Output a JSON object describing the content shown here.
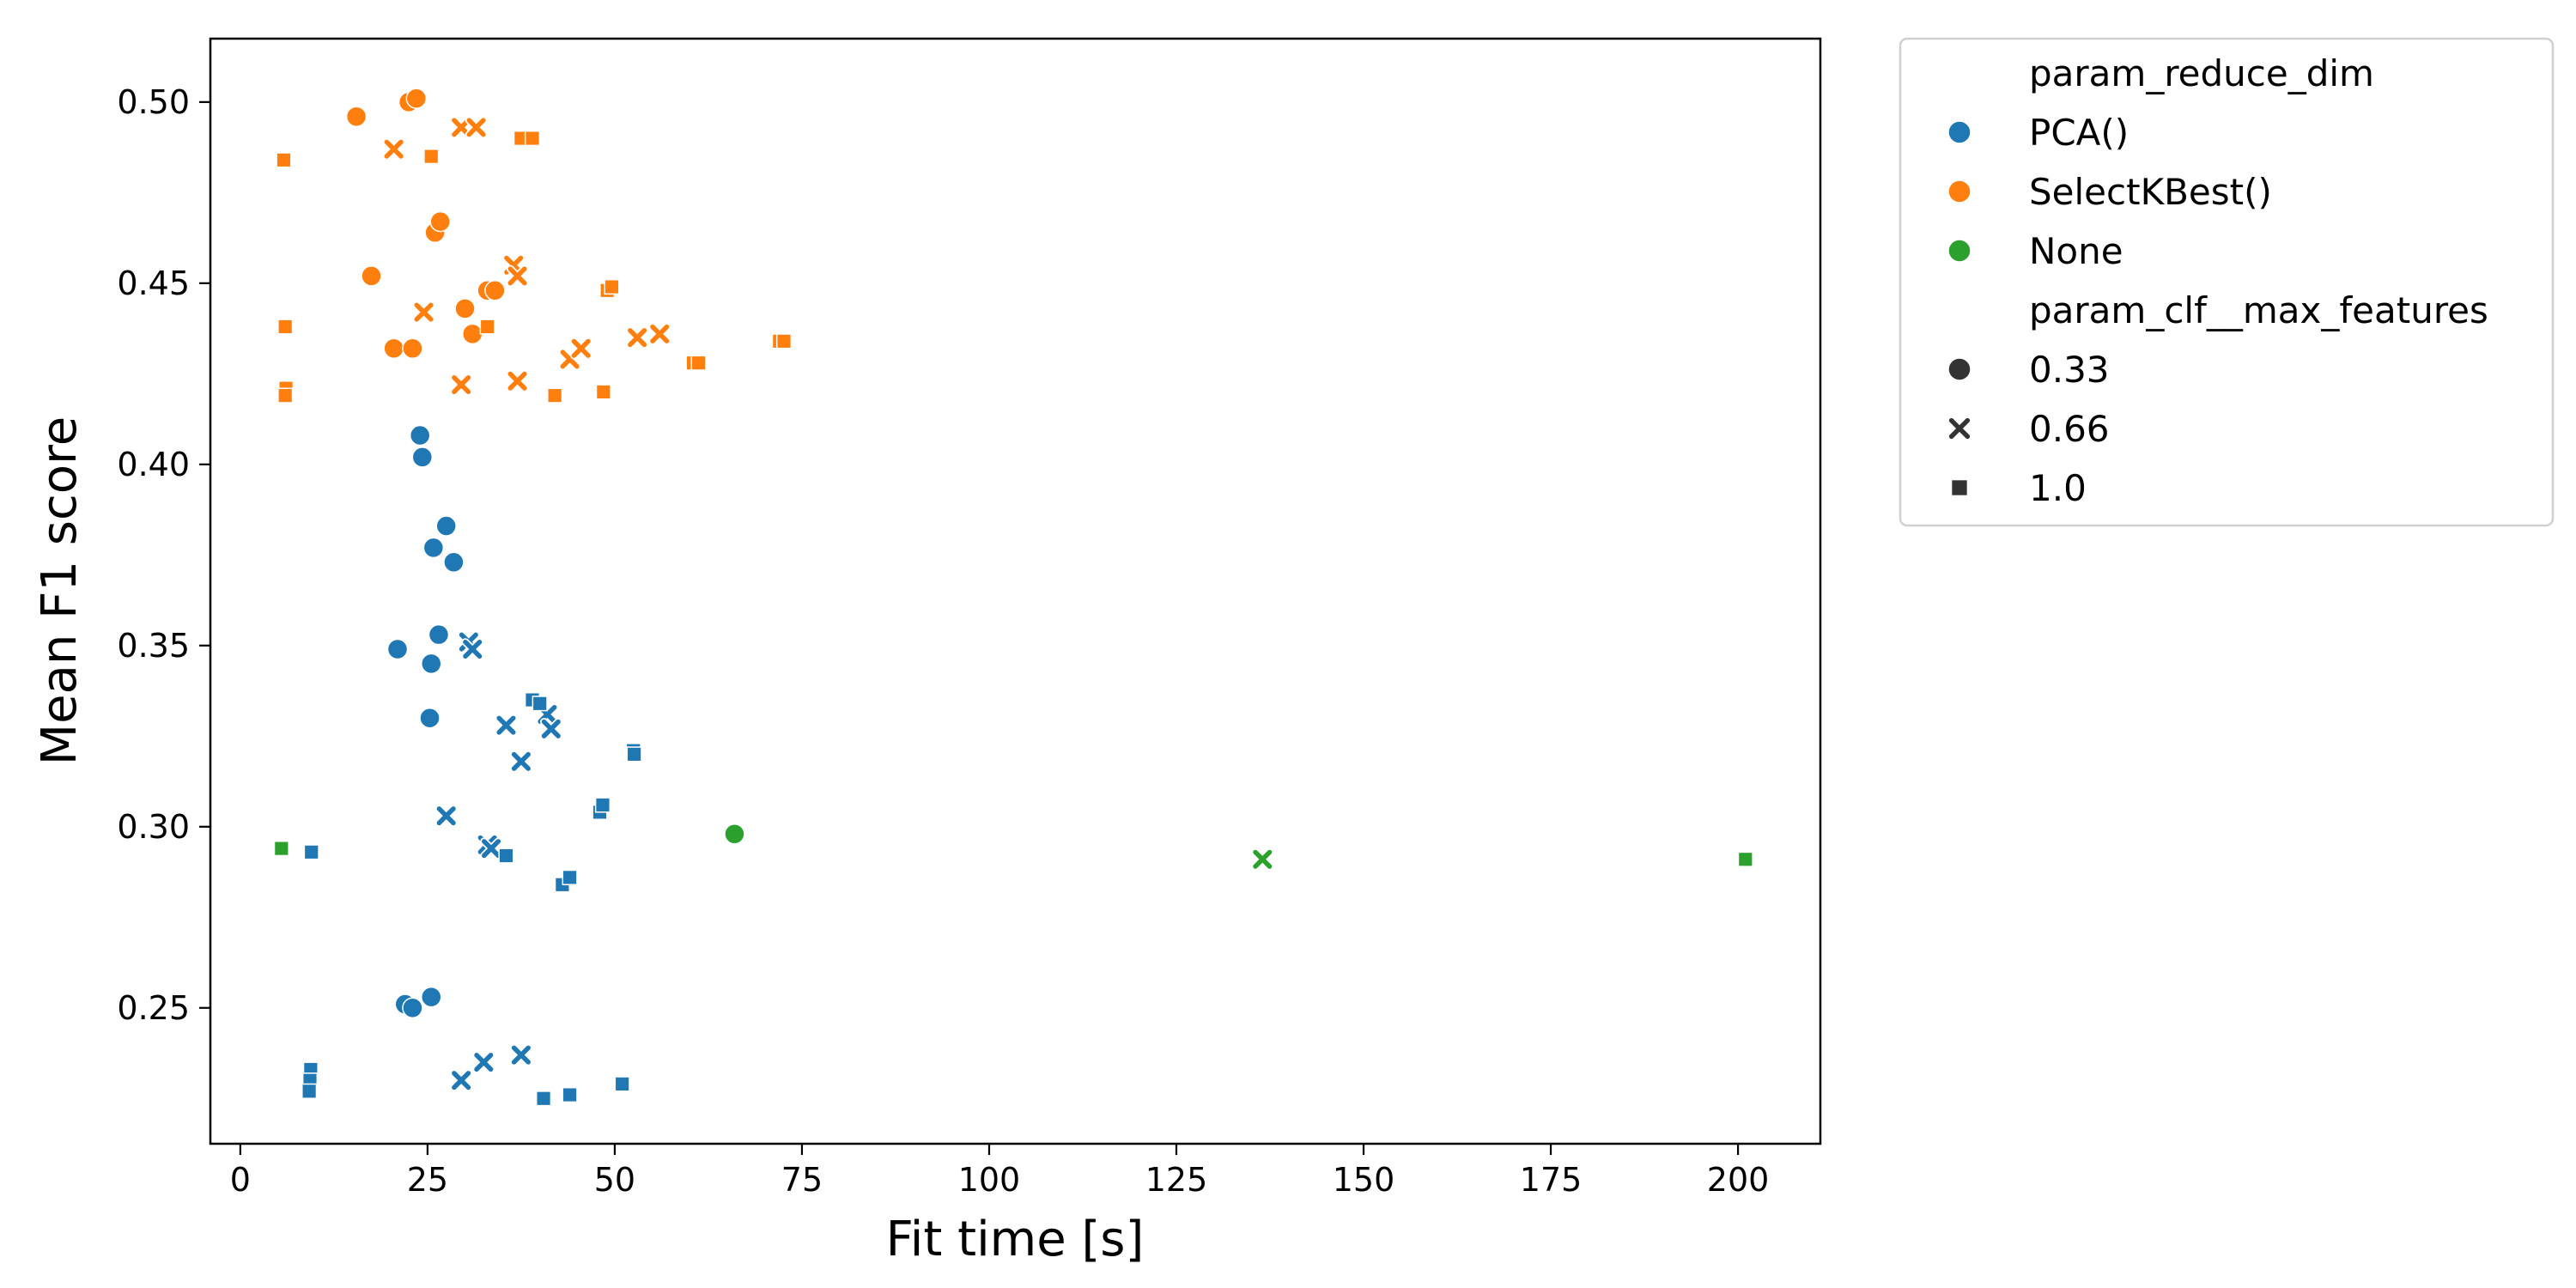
{
  "chart_data": {
    "type": "scatter",
    "xlabel": "Fit time [s]",
    "ylabel": "Mean F1 score",
    "xlim": [
      -4,
      211
    ],
    "ylim": [
      0.2125,
      0.5175
    ],
    "xticks": [
      0,
      25,
      50,
      75,
      100,
      125,
      150,
      175,
      200
    ],
    "yticks": [
      0.25,
      0.3,
      0.35,
      0.4,
      0.45,
      0.5
    ],
    "xtick_labels": [
      "0",
      "25",
      "50",
      "75",
      "100",
      "125",
      "150",
      "175",
      "200"
    ],
    "ytick_labels": [
      "0.25",
      "0.30",
      "0.35",
      "0.40",
      "0.45",
      "0.50"
    ],
    "grid": false,
    "legend": {
      "placement": "outside-upper-right",
      "hue_title": "param_reduce_dim",
      "style_title": "param_clf__max_features",
      "hue_entries": [
        {
          "label": "PCA()",
          "color": "#1f77b4"
        },
        {
          "label": "SelectKBest()",
          "color": "#ff7f0e"
        },
        {
          "label": "None",
          "color": "#2ca02c"
        }
      ],
      "style_entries": [
        {
          "label": "0.33",
          "marker": "circle"
        },
        {
          "label": "0.66",
          "marker": "x"
        },
        {
          "label": "1.0",
          "marker": "square"
        }
      ]
    },
    "series": [
      {
        "hue": 0,
        "style": 0,
        "points": [
          [
            24,
            0.408
          ],
          [
            24.3,
            0.402
          ],
          [
            27.5,
            0.383
          ],
          [
            25.8,
            0.377
          ],
          [
            28.5,
            0.373
          ],
          [
            26.5,
            0.353
          ],
          [
            21,
            0.349
          ],
          [
            25.5,
            0.345
          ],
          [
            25.3,
            0.33
          ],
          [
            22,
            0.251
          ],
          [
            23,
            0.25
          ],
          [
            25.5,
            0.253
          ]
        ]
      },
      {
        "hue": 0,
        "style": 1,
        "points": [
          [
            30.5,
            0.351
          ],
          [
            31,
            0.349
          ],
          [
            35.5,
            0.328
          ],
          [
            37.5,
            0.318
          ],
          [
            41,
            0.331
          ],
          [
            41.5,
            0.327
          ],
          [
            27.5,
            0.303
          ],
          [
            33,
            0.295
          ],
          [
            33.5,
            0.294
          ],
          [
            29.5,
            0.23
          ],
          [
            32.5,
            0.235
          ],
          [
            37.5,
            0.237
          ]
        ]
      },
      {
        "hue": 0,
        "style": 2,
        "points": [
          [
            39,
            0.335
          ],
          [
            40,
            0.334
          ],
          [
            52.5,
            0.321
          ],
          [
            52.6,
            0.32
          ],
          [
            48,
            0.304
          ],
          [
            48.4,
            0.306
          ],
          [
            35.5,
            0.292
          ],
          [
            43,
            0.284
          ],
          [
            44,
            0.286
          ],
          [
            9.5,
            0.293
          ],
          [
            9.4,
            0.233
          ],
          [
            9.3,
            0.23
          ],
          [
            9.2,
            0.227
          ],
          [
            40.5,
            0.225
          ],
          [
            44,
            0.226
          ],
          [
            51,
            0.229
          ]
        ]
      },
      {
        "hue": 1,
        "style": 0,
        "points": [
          [
            15.5,
            0.496
          ],
          [
            22.5,
            0.5
          ],
          [
            23.5,
            0.501
          ],
          [
            17.5,
            0.452
          ],
          [
            26,
            0.464
          ],
          [
            26.7,
            0.467
          ],
          [
            33,
            0.448
          ],
          [
            34,
            0.448
          ],
          [
            30,
            0.443
          ],
          [
            31,
            0.436
          ],
          [
            20.5,
            0.432
          ],
          [
            23,
            0.432
          ]
        ]
      },
      {
        "hue": 1,
        "style": 1,
        "points": [
          [
            29.5,
            0.493
          ],
          [
            31.5,
            0.493
          ],
          [
            20.5,
            0.487
          ],
          [
            36.5,
            0.455
          ],
          [
            37,
            0.452
          ],
          [
            24.5,
            0.442
          ],
          [
            44,
            0.429
          ],
          [
            45.5,
            0.432
          ],
          [
            53,
            0.435
          ],
          [
            56,
            0.436
          ],
          [
            29.5,
            0.422
          ],
          [
            37,
            0.423
          ]
        ]
      },
      {
        "hue": 1,
        "style": 2,
        "points": [
          [
            37.5,
            0.49
          ],
          [
            39,
            0.49
          ],
          [
            25.5,
            0.485
          ],
          [
            5.8,
            0.484
          ],
          [
            49,
            0.448
          ],
          [
            49.6,
            0.449
          ],
          [
            6,
            0.438
          ],
          [
            33,
            0.438
          ],
          [
            60.5,
            0.428
          ],
          [
            61.2,
            0.428
          ],
          [
            72,
            0.434
          ],
          [
            72.6,
            0.434
          ],
          [
            6.1,
            0.421
          ],
          [
            6,
            0.419
          ],
          [
            42,
            0.419
          ],
          [
            48.5,
            0.42
          ]
        ]
      },
      {
        "hue": 2,
        "style": 0,
        "points": [
          [
            66,
            0.298
          ]
        ]
      },
      {
        "hue": 2,
        "style": 1,
        "points": [
          [
            136.5,
            0.291
          ]
        ]
      },
      {
        "hue": 2,
        "style": 2,
        "points": [
          [
            5.5,
            0.294
          ],
          [
            201,
            0.291
          ]
        ]
      }
    ]
  }
}
